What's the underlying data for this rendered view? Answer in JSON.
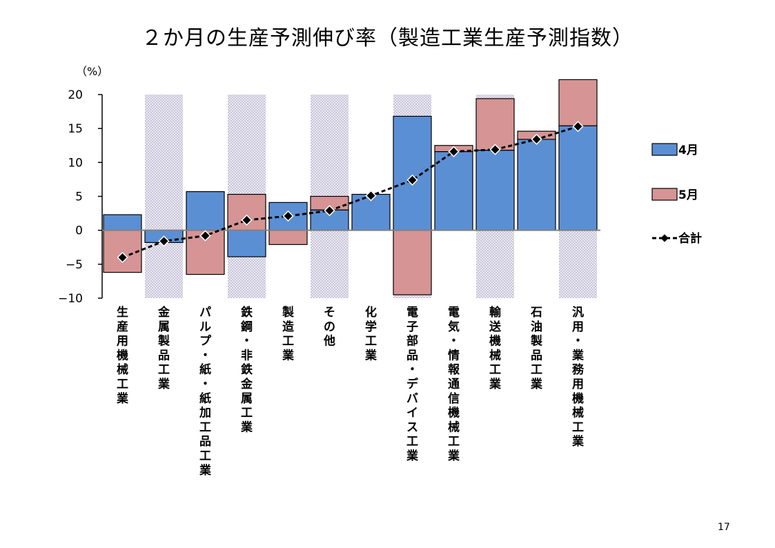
{
  "page": {
    "title": "２か月の生産予測伸び率（製造工業生産予測指数）",
    "unit_label": "（%）",
    "page_number": "17"
  },
  "colors": {
    "april": "#5b8fd4",
    "may": "#d69494",
    "bar_edge": "#000000",
    "total_line": "#000000",
    "shade_band": "#d2cfe0"
  },
  "chart_data": {
    "type": "bar",
    "stacked": true,
    "title": "２か月の生産予測伸び率（製造工業生産予測指数）",
    "ylabel": "（%）",
    "ylim": [
      -10,
      20
    ],
    "yticks": [
      20,
      15,
      10,
      5,
      0,
      -5,
      -10
    ],
    "ytick_labels": [
      "20",
      "15",
      "10",
      "5",
      "0",
      "−5",
      "−10"
    ],
    "categories": [
      "生産用機械工業",
      "金属製品工業",
      "パルプ・紙・紙加工品工業",
      "鉄鋼・非鉄金属工業",
      "製造工業",
      "その他",
      "化学工業",
      "電子部品・デバイス工業",
      "電気・情報通信機械工業",
      "輸送機械工業",
      "石油製品工業",
      "汎用・業務用機械工業"
    ],
    "shaded_categories": [
      1,
      3,
      5,
      7,
      9,
      11
    ],
    "series": [
      {
        "name": "4月",
        "kind": "bar",
        "color": "#5b8fd4",
        "values": [
          2.3,
          -1.8,
          5.7,
          -3.9,
          4.1,
          3.0,
          5.3,
          16.8,
          11.6,
          11.8,
          13.4,
          15.4
        ]
      },
      {
        "name": "5月",
        "kind": "bar",
        "color": "#d69494",
        "values": [
          -6.2,
          0,
          -6.5,
          5.3,
          -2.1,
          2.0,
          0,
          -9.5,
          0.9,
          7.6,
          1.2,
          6.8
        ]
      },
      {
        "name": "合計",
        "kind": "line",
        "color": "#000000",
        "values": [
          -4.0,
          -1.6,
          -0.8,
          1.5,
          2.1,
          2.9,
          5.1,
          7.4,
          11.6,
          11.9,
          13.4,
          15.3
        ]
      }
    ],
    "legend": {
      "position": "right"
    }
  }
}
